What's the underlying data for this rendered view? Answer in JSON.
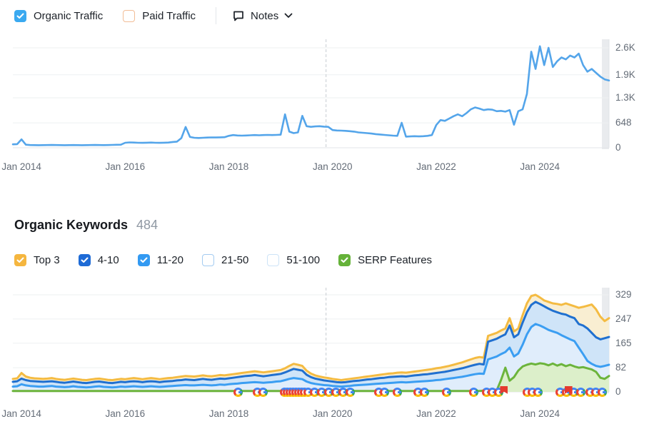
{
  "header": {
    "notes_label": "Notes",
    "traffic_toggles": [
      {
        "label": "Organic Traffic",
        "checked": true,
        "color": "#3aa9f0",
        "border": "#3aa9f0"
      },
      {
        "label": "Paid Traffic",
        "checked": false,
        "color": "#ffffff",
        "border": "#f2bd96"
      }
    ]
  },
  "keywords": {
    "title": "Organic Keywords",
    "count": "484",
    "filters": [
      {
        "label": "Top 3",
        "checked": true,
        "color": "#f5b63f",
        "border": "#f5b63f"
      },
      {
        "label": "4-10",
        "checked": true,
        "color": "#1e6bd6",
        "border": "#1e6bd6"
      },
      {
        "label": "11-20",
        "checked": true,
        "color": "#339af2",
        "border": "#339af2"
      },
      {
        "label": "21-50",
        "checked": false,
        "color": "#ffffff",
        "border": "#a3cbf1"
      },
      {
        "label": "51-100",
        "checked": false,
        "color": "#ffffff",
        "border": "#cde3f7"
      },
      {
        "label": "SERP Features",
        "checked": true,
        "color": "#65b239",
        "border": "#65b239"
      }
    ]
  },
  "chart_data": [
    {
      "type": "line",
      "title": "Organic Traffic trend",
      "x_start": "Nov 2013",
      "x_step_months": 1,
      "x_tick_month_indices": [
        2,
        26,
        50,
        74,
        98,
        122
      ],
      "x_tick_labels": [
        "Jan 2014",
        "Jan 2016",
        "Jan 2018",
        "Jan 2020",
        "Jan 2022",
        "Jan 2024"
      ],
      "y_ticks": [
        0,
        648,
        1300,
        1900,
        2600
      ],
      "y_tick_labels": [
        "0",
        "648",
        "1.3K",
        "1.9K",
        "2.6K"
      ],
      "ylim": [
        0,
        2800
      ],
      "grid": true,
      "dashed_marker_month_index": 72.5,
      "series": [
        {
          "name": "Organic Traffic",
          "color": "#54a5ea",
          "values": [
            90,
            95,
            220,
            80,
            70,
            68,
            66,
            68,
            70,
            72,
            70,
            68,
            66,
            68,
            70,
            68,
            66,
            68,
            70,
            72,
            70,
            68,
            70,
            74,
            78,
            80,
            130,
            140,
            135,
            130,
            128,
            132,
            136,
            130,
            128,
            132,
            136,
            150,
            160,
            250,
            540,
            280,
            260,
            255,
            260,
            265,
            270,
            268,
            272,
            275,
            310,
            330,
            320,
            315,
            320,
            325,
            330,
            325,
            330,
            335,
            330,
            335,
            340,
            870,
            420,
            380,
            400,
            830,
            560,
            545,
            555,
            560,
            550,
            545,
            460,
            450,
            445,
            440,
            430,
            420,
            400,
            390,
            380,
            370,
            355,
            345,
            335,
            325,
            315,
            310,
            650,
            290,
            295,
            300,
            295,
            300,
            310,
            330,
            590,
            720,
            700,
            760,
            820,
            870,
            820,
            900,
            1000,
            1050,
            1020,
            980,
            1000,
            990,
            950,
            960,
            940,
            980,
            600,
            950,
            1000,
            1400,
            2500,
            2050,
            2640,
            2150,
            2600,
            2100,
            2250,
            2350,
            2300,
            2400,
            2350,
            2450,
            2150,
            1980,
            2050,
            1950,
            1850,
            1780,
            1750
          ]
        }
      ]
    },
    {
      "type": "area",
      "title": "Organic Keywords positions",
      "x_start": "Nov 2013",
      "x_step_months": 1,
      "x_tick_month_indices": [
        2,
        26,
        50,
        74,
        98,
        122
      ],
      "x_tick_labels": [
        "Jan 2014",
        "Jan 2016",
        "Jan 2018",
        "Jan 2020",
        "Jan 2022",
        "Jan 2024"
      ],
      "y_ticks": [
        0,
        82,
        165,
        247,
        329
      ],
      "y_tick_labels": [
        "0",
        "82",
        "165",
        "247",
        "329"
      ],
      "ylim": [
        0,
        340
      ],
      "grid": true,
      "dashed_marker_month_index": 72.5,
      "series": [
        {
          "name": "Top 3",
          "color": "#f4bb42",
          "fill": "#f9eed2",
          "values": [
            44,
            46,
            64,
            52,
            48,
            46,
            45,
            44,
            45,
            47,
            44,
            42,
            41,
            43,
            45,
            43,
            41,
            40,
            42,
            44,
            45,
            43,
            41,
            40,
            42,
            44,
            43,
            45,
            47,
            45,
            43,
            45,
            47,
            45,
            43,
            45,
            47,
            48,
            50,
            52,
            54,
            53,
            52,
            54,
            56,
            54,
            53,
            55,
            57,
            56,
            58,
            60,
            62,
            64,
            66,
            68,
            70,
            68,
            66,
            68,
            70,
            72,
            74,
            80,
            88,
            95,
            92,
            88,
            72,
            62,
            56,
            52,
            49,
            47,
            44,
            42,
            40,
            42,
            44,
            46,
            48,
            50,
            52,
            54,
            56,
            58,
            60,
            62,
            63,
            65,
            66,
            65,
            67,
            69,
            71,
            73,
            75,
            77,
            80,
            82,
            85,
            88,
            92,
            96,
            100,
            105,
            110,
            115,
            118,
            116,
            190,
            195,
            200,
            208,
            215,
            250,
            205,
            215,
            260,
            300,
            325,
            329,
            320,
            310,
            305,
            300,
            298,
            295,
            300,
            295,
            290,
            285,
            288,
            292,
            296,
            280,
            255,
            240,
            250
          ]
        },
        {
          "name": "4-10",
          "color": "#2070d0",
          "fill": "#cfe4f8",
          "values": [
            34,
            36,
            45,
            40,
            37,
            36,
            35,
            34,
            35,
            36,
            34,
            32,
            31,
            33,
            35,
            33,
            31,
            30,
            32,
            34,
            35,
            33,
            31,
            30,
            32,
            34,
            33,
            35,
            36,
            35,
            33,
            35,
            36,
            35,
            33,
            35,
            36,
            37,
            39,
            40,
            42,
            41,
            40,
            42,
            44,
            42,
            41,
            43,
            45,
            44,
            46,
            48,
            50,
            52,
            54,
            55,
            57,
            55,
            53,
            55,
            57,
            59,
            61,
            66,
            72,
            78,
            75,
            72,
            58,
            50,
            45,
            42,
            39,
            37,
            35,
            33,
            32,
            33,
            35,
            37,
            38,
            40,
            42,
            43,
            45,
            47,
            48,
            50,
            51,
            52,
            53,
            52,
            54,
            56,
            57,
            59,
            60,
            62,
            64,
            66,
            68,
            71,
            74,
            77,
            80,
            84,
            88,
            92,
            95,
            93,
            170,
            175,
            180,
            188,
            195,
            225,
            185,
            195,
            235,
            270,
            295,
            305,
            298,
            290,
            282,
            275,
            270,
            265,
            262,
            255,
            250,
            230,
            225,
            215,
            200,
            185,
            178,
            182,
            186
          ]
        },
        {
          "name": "11-20",
          "color": "#3b9ef2",
          "fill": "#e0edfb",
          "values": [
            18,
            19,
            26,
            22,
            20,
            19,
            18,
            18,
            19,
            20,
            18,
            17,
            16,
            17,
            19,
            17,
            16,
            15,
            16,
            18,
            19,
            17,
            16,
            15,
            16,
            18,
            17,
            18,
            19,
            18,
            17,
            18,
            19,
            18,
            17,
            18,
            19,
            20,
            21,
            22,
            23,
            22,
            22,
            23,
            24,
            23,
            22,
            23,
            25,
            24,
            26,
            27,
            28,
            30,
            31,
            32,
            33,
            32,
            31,
            32,
            33,
            35,
            36,
            40,
            44,
            47,
            45,
            43,
            35,
            30,
            27,
            25,
            23,
            22,
            20,
            19,
            18,
            19,
            20,
            22,
            23,
            24,
            25,
            26,
            27,
            28,
            29,
            30,
            31,
            32,
            33,
            32,
            33,
            34,
            35,
            36,
            37,
            38,
            40,
            41,
            43,
            45,
            47,
            49,
            51,
            54,
            57,
            60,
            62,
            61,
            110,
            115,
            120,
            128,
            135,
            150,
            120,
            130,
            160,
            195,
            220,
            230,
            225,
            218,
            210,
            205,
            200,
            192,
            185,
            178,
            172,
            150,
            128,
            105,
            95,
            88,
            85,
            88,
            92
          ]
        },
        {
          "name": "SERP Features",
          "color": "#6cb43c",
          "fill": "#dcefca",
          "values": [
            3,
            3,
            3,
            3,
            3,
            3,
            3,
            3,
            3,
            3,
            3,
            3,
            3,
            3,
            3,
            3,
            3,
            3,
            3,
            3,
            3,
            3,
            3,
            3,
            3,
            3,
            3,
            3,
            3,
            3,
            3,
            3,
            3,
            3,
            3,
            3,
            3,
            3,
            3,
            3,
            3,
            3,
            3,
            3,
            3,
            3,
            3,
            3,
            3,
            3,
            3,
            3,
            3,
            3,
            3,
            3,
            3,
            3,
            3,
            3,
            3,
            3,
            3,
            3,
            3,
            3,
            3,
            3,
            3,
            3,
            3,
            3,
            3,
            3,
            3,
            3,
            3,
            3,
            3,
            3,
            3,
            3,
            3,
            3,
            3,
            3,
            3,
            3,
            3,
            3,
            3,
            3,
            3,
            3,
            3,
            3,
            3,
            3,
            3,
            3,
            3,
            3,
            3,
            3,
            3,
            3,
            3,
            3,
            3,
            4,
            4,
            4,
            5,
            40,
            82,
            38,
            50,
            72,
            86,
            92,
            96,
            93,
            97,
            95,
            90,
            96,
            89,
            94,
            87,
            92,
            86,
            82,
            84,
            80,
            76,
            68,
            48,
            44,
            54
          ]
        }
      ],
      "serp_icon_month_indices": [
        52.1,
        56.6,
        57.9,
        62.9,
        63.6,
        64.2,
        64.9,
        65.5,
        66.2,
        66.9,
        67.5,
        68.3,
        69.8,
        71.5,
        73.1,
        74.8,
        76.5,
        78.1,
        84.7,
        86.1,
        89,
        93.8,
        95.3,
        100.4,
        106.7,
        109.6,
        111,
        112.5,
        119,
        120.3,
        121.6,
        126.6,
        128.1,
        129.9,
        131.4,
        133.6,
        134.9,
        136.5
      ],
      "note_flag_month_indices": [
        113.7,
        128.6
      ]
    }
  ]
}
